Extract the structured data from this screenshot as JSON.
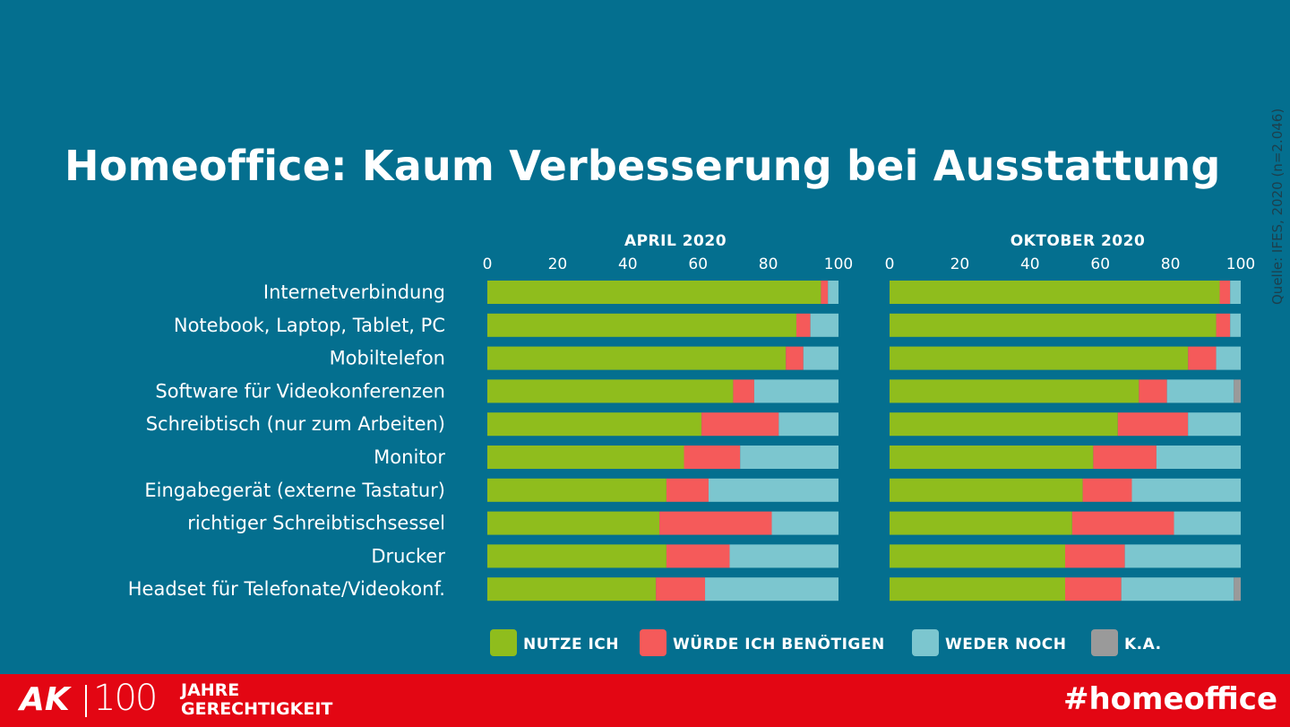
{
  "title": "Homeoffice: Kaum Verbesserung bei Ausstattung",
  "source": "Quelle: IFES, 2020 (n=2.046)",
  "colors": {
    "background": "#046f8f",
    "footer": "#e30613",
    "nutze": "#8fbd1d",
    "wuerde": "#f55a5a",
    "weder": "#7cc6cf",
    "ka": "#9a9a9a"
  },
  "footer": {
    "logo_ak": "AK",
    "logo_number": "100",
    "logo_line1": "JAHRE",
    "logo_line2": "GERECHTIGKEIT",
    "hashtag": "#homeoffice"
  },
  "chart_data": {
    "type": "bar",
    "orientation": "horizontal",
    "stacked": true,
    "xlim": [
      0,
      100
    ],
    "ticks": [
      "0",
      "20",
      "40",
      "60",
      "80",
      "100"
    ],
    "categories": [
      "Internetverbindung",
      "Notebook, Laptop, Tablet, PC",
      "Mobiltelefon",
      "Software für Videokonferenzen",
      "Schreibtisch (nur zum Arbeiten)",
      "Monitor",
      "Eingabegerät (externe Tastatur)",
      "richtiger Schreibtischsessel",
      "Drucker",
      "Headset für Telefonate/Videokonf."
    ],
    "legend": [
      "NUTZE ICH",
      "WÜRDE ICH BENÖTIGEN",
      "WEDER NOCH",
      "K.A."
    ],
    "panels": [
      {
        "label": "APRIL 2020",
        "series": [
          {
            "name": "NUTZE ICH",
            "values": [
              95,
              88,
              85,
              70,
              61,
              56,
              51,
              49,
              51,
              48
            ]
          },
          {
            "name": "WÜRDE ICH BENÖTIGEN",
            "values": [
              2,
              4,
              5,
              6,
              22,
              16,
              12,
              32,
              18,
              14
            ]
          },
          {
            "name": "WEDER NOCH",
            "values": [
              3,
              8,
              10,
              24,
              17,
              28,
              37,
              19,
              31,
              38
            ]
          },
          {
            "name": "K.A.",
            "values": [
              0,
              0,
              0,
              0,
              0,
              0,
              0,
              0,
              0,
              0
            ]
          }
        ]
      },
      {
        "label": "OKTOBER 2020",
        "series": [
          {
            "name": "NUTZE ICH",
            "values": [
              94,
              93,
              85,
              71,
              65,
              58,
              55,
              52,
              50,
              50
            ]
          },
          {
            "name": "WÜRDE ICH BENÖTIGEN",
            "values": [
              3,
              4,
              8,
              8,
              20,
              18,
              14,
              29,
              17,
              16
            ]
          },
          {
            "name": "WEDER NOCH",
            "values": [
              3,
              3,
              7,
              19,
              15,
              24,
              31,
              19,
              33,
              32
            ]
          },
          {
            "name": "K.A.",
            "values": [
              0,
              0,
              0,
              2,
              0,
              0,
              0,
              0,
              0,
              2
            ]
          }
        ]
      }
    ]
  }
}
